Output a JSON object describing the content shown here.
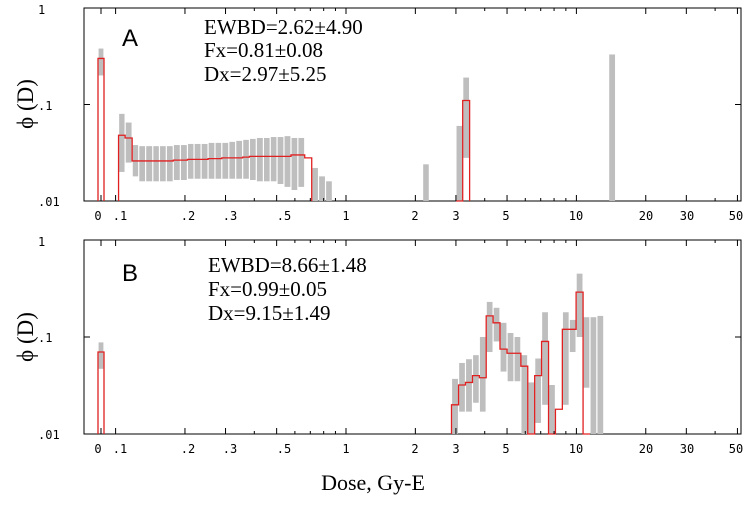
{
  "chart_data": {
    "type": "bar",
    "xlabel": "Dose, Gy-E",
    "ylabel": "ϕ (D)",
    "x_scale": "log",
    "y_scale": "log",
    "ylim": [
      0.01,
      1
    ],
    "y_ticks": [
      "1",
      ".1",
      ".01"
    ],
    "x_ticks": [
      "0",
      ".1",
      ".2",
      ".3",
      ".5",
      "1",
      "2",
      "3",
      "5",
      "10",
      "20",
      "30",
      "50"
    ],
    "colors": {
      "fit_line": "#e02020",
      "uncertainty_band": "#bebebe",
      "axes": "#000000"
    },
    "panels": [
      {
        "letter": "A",
        "stats": [
          "EWBD=2.62±4.90",
          "Fx=0.81±0.08",
          "Dx=2.97±5.25"
        ],
        "zero_bin": {
          "value": 0.3,
          "band": [
            0.2,
            0.38
          ]
        },
        "bins": [
          {
            "x0": 0.103,
            "x1": 0.11,
            "value": 0.048,
            "band": [
              0.02,
              0.08
            ]
          },
          {
            "x0": 0.11,
            "x1": 0.118,
            "value": 0.045,
            "band": [
              0.025,
              0.065
            ]
          },
          {
            "x0": 0.118,
            "x1": 0.126,
            "value": 0.026,
            "band": [
              0.018,
              0.038
            ]
          },
          {
            "x0": 0.126,
            "x1": 0.135,
            "value": 0.026,
            "band": [
              0.016,
              0.037
            ]
          },
          {
            "x0": 0.135,
            "x1": 0.145,
            "value": 0.026,
            "band": [
              0.016,
              0.037
            ]
          },
          {
            "x0": 0.145,
            "x1": 0.155,
            "value": 0.026,
            "band": [
              0.016,
              0.037
            ]
          },
          {
            "x0": 0.155,
            "x1": 0.166,
            "value": 0.026,
            "band": [
              0.016,
              0.037
            ]
          },
          {
            "x0": 0.166,
            "x1": 0.178,
            "value": 0.026,
            "band": [
              0.016,
              0.037
            ]
          },
          {
            "x0": 0.178,
            "x1": 0.191,
            "value": 0.0265,
            "band": [
              0.0165,
              0.038
            ]
          },
          {
            "x0": 0.191,
            "x1": 0.205,
            "value": 0.0265,
            "band": [
              0.0165,
              0.038
            ]
          },
          {
            "x0": 0.205,
            "x1": 0.219,
            "value": 0.027,
            "band": [
              0.017,
              0.039
            ]
          },
          {
            "x0": 0.219,
            "x1": 0.235,
            "value": 0.027,
            "band": [
              0.017,
              0.039
            ]
          },
          {
            "x0": 0.235,
            "x1": 0.252,
            "value": 0.027,
            "band": [
              0.017,
              0.039
            ]
          },
          {
            "x0": 0.252,
            "x1": 0.27,
            "value": 0.0275,
            "band": [
              0.017,
              0.04
            ]
          },
          {
            "x0": 0.27,
            "x1": 0.289,
            "value": 0.0275,
            "band": [
              0.017,
              0.04
            ]
          },
          {
            "x0": 0.289,
            "x1": 0.31,
            "value": 0.028,
            "band": [
              0.017,
              0.04
            ]
          },
          {
            "x0": 0.31,
            "x1": 0.332,
            "value": 0.028,
            "band": [
              0.017,
              0.041
            ]
          },
          {
            "x0": 0.332,
            "x1": 0.356,
            "value": 0.028,
            "band": [
              0.017,
              0.042
            ]
          },
          {
            "x0": 0.356,
            "x1": 0.381,
            "value": 0.0285,
            "band": [
              0.017,
              0.043
            ]
          },
          {
            "x0": 0.381,
            "x1": 0.408,
            "value": 0.029,
            "band": [
              0.0165,
              0.044
            ]
          },
          {
            "x0": 0.408,
            "x1": 0.438,
            "value": 0.029,
            "band": [
              0.016,
              0.045
            ]
          },
          {
            "x0": 0.438,
            "x1": 0.469,
            "value": 0.029,
            "band": [
              0.016,
              0.045
            ]
          },
          {
            "x0": 0.469,
            "x1": 0.502,
            "value": 0.029,
            "band": [
              0.016,
              0.046
            ]
          },
          {
            "x0": 0.502,
            "x1": 0.538,
            "value": 0.029,
            "band": [
              0.015,
              0.046
            ]
          },
          {
            "x0": 0.538,
            "x1": 0.577,
            "value": 0.029,
            "band": [
              0.014,
              0.047
            ]
          },
          {
            "x0": 0.577,
            "x1": 0.618,
            "value": 0.03,
            "band": [
              0.013,
              0.045
            ]
          },
          {
            "x0": 0.618,
            "x1": 0.662,
            "value": 0.03,
            "band": [
              0.014,
              0.045
            ]
          },
          {
            "x0": 0.662,
            "x1": 0.71,
            "value": 0.028,
            "band": null
          },
          {
            "x0": 0.71,
            "x1": 0.76,
            "value": null,
            "band": [
              0.01,
              0.022
            ]
          },
          {
            "x0": 0.76,
            "x1": 0.815,
            "value": null,
            "band": [
              0.01,
              0.018
            ]
          },
          {
            "x0": 0.815,
            "x1": 0.873,
            "value": null,
            "band": [
              0.01,
              0.016
            ]
          },
          {
            "x0": 2.15,
            "x1": 2.3,
            "value": null,
            "band": [
              0.01,
              0.024
            ]
          },
          {
            "x0": 3.0,
            "x1": 3.21,
            "value": 0.01,
            "band": [
              0.01,
              0.06
            ]
          },
          {
            "x0": 3.21,
            "x1": 3.44,
            "value": 0.11,
            "band": [
              0.028,
              0.19
            ]
          },
          {
            "x0": 13.8,
            "x1": 14.8,
            "value": null,
            "band": [
              0.01,
              0.33
            ]
          }
        ]
      },
      {
        "letter": "B",
        "stats": [
          "EWBD=8.66±1.48",
          "Fx=0.99±0.05",
          "Dx=9.15±1.49"
        ],
        "zero_bin": {
          "value": 0.07,
          "band": [
            0.047,
            0.088
          ]
        },
        "bins": [
          {
            "x0": 2.87,
            "x1": 3.08,
            "value": 0.02,
            "band": [
              0.01,
              0.037
            ]
          },
          {
            "x0": 3.08,
            "x1": 3.3,
            "value": 0.032,
            "band": [
              0.017,
              0.054
            ]
          },
          {
            "x0": 3.3,
            "x1": 3.54,
            "value": 0.034,
            "band": [
              0.017,
              0.059
            ]
          },
          {
            "x0": 3.54,
            "x1": 3.79,
            "value": 0.04,
            "band": [
              0.021,
              0.065
            ]
          },
          {
            "x0": 3.79,
            "x1": 4.06,
            "value": 0.038,
            "band": [
              0.017,
              0.1
            ]
          },
          {
            "x0": 4.06,
            "x1": 4.35,
            "value": 0.165,
            "band": [
              0.07,
              0.23
            ]
          },
          {
            "x0": 4.35,
            "x1": 4.66,
            "value": 0.14,
            "band": [
              0.09,
              0.2
            ]
          },
          {
            "x0": 4.66,
            "x1": 5.0,
            "value": 0.075,
            "band": [
              0.044,
              0.14
            ]
          },
          {
            "x0": 5.0,
            "x1": 5.36,
            "value": 0.068,
            "band": [
              0.035,
              0.11
            ]
          },
          {
            "x0": 5.36,
            "x1": 5.74,
            "value": 0.068,
            "band": [
              0.035,
              0.1
            ]
          },
          {
            "x0": 5.74,
            "x1": 6.15,
            "value": 0.05,
            "band": [
              0.01,
              0.065
            ]
          },
          {
            "x0": 6.15,
            "x1": 6.59,
            "value": 0.01,
            "band": [
              0.01,
              0.034
            ]
          },
          {
            "x0": 6.59,
            "x1": 7.06,
            "value": 0.04,
            "band": [
              0.013,
              0.06
            ]
          },
          {
            "x0": 7.06,
            "x1": 7.57,
            "value": 0.09,
            "band": [
              0.02,
              0.18
            ]
          },
          {
            "x0": 7.57,
            "x1": 8.11,
            "value": 0.01,
            "band": [
              0.01,
              0.032
            ]
          },
          {
            "x0": 8.11,
            "x1": 8.69,
            "value": 0.018,
            "band": null
          },
          {
            "x0": 8.69,
            "x1": 9.31,
            "value": 0.12,
            "band": [
              0.02,
              0.18
            ]
          },
          {
            "x0": 9.31,
            "x1": 9.97,
            "value": 0.12,
            "band": [
              0.07,
              0.15
            ]
          },
          {
            "x0": 9.97,
            "x1": 10.69,
            "value": 0.29,
            "band": [
              0.1,
              0.45
            ]
          },
          {
            "x0": 10.69,
            "x1": 11.45,
            "value": 0.01,
            "band": [
              0.03,
              0.16
            ]
          },
          {
            "x0": 11.45,
            "x1": 12.27,
            "value": null,
            "band": [
              0.01,
              0.16
            ]
          },
          {
            "x0": 12.27,
            "x1": 13.15,
            "value": null,
            "band": [
              0.01,
              0.165
            ]
          }
        ]
      }
    ]
  }
}
